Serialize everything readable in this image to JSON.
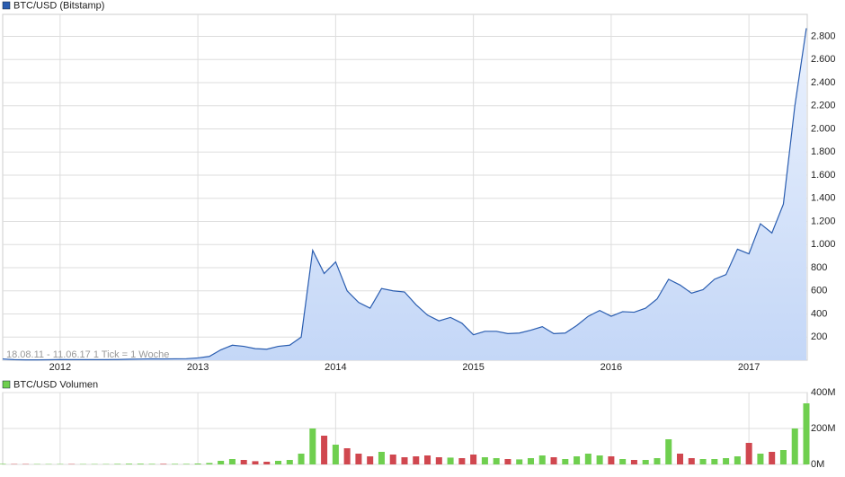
{
  "chart_data": [
    {
      "type": "area",
      "title": "BTC/USD (Bitstamp)",
      "color": "#2a5db0",
      "fill": "#c4d7f7",
      "note": "18.08.11 - 11.06.17   1 Tick = 1 Woche",
      "categories": [
        null,
        null,
        null,
        null,
        null,
        "2012",
        null,
        null,
        null,
        null,
        null,
        null,
        null,
        null,
        null,
        null,
        null,
        "2013",
        null,
        null,
        null,
        null,
        null,
        null,
        null,
        null,
        null,
        null,
        null,
        "2014",
        null,
        null,
        null,
        null,
        null,
        null,
        null,
        null,
        null,
        null,
        null,
        "2015",
        null,
        null,
        null,
        null,
        null,
        null,
        null,
        null,
        null,
        null,
        null,
        "2016",
        null,
        null,
        null,
        null,
        null,
        null,
        null,
        null,
        null,
        null,
        null,
        "2017",
        null,
        null,
        null,
        null,
        null
      ],
      "values": [
        11,
        5,
        3,
        3,
        4,
        6,
        5,
        5,
        5,
        5,
        6,
        9,
        10,
        12,
        11,
        12,
        13,
        20,
        33,
        90,
        130,
        120,
        100,
        95,
        120,
        130,
        200,
        950,
        750,
        850,
        600,
        500,
        450,
        620,
        600,
        590,
        480,
        390,
        340,
        370,
        320,
        220,
        250,
        250,
        230,
        235,
        260,
        290,
        230,
        235,
        300,
        380,
        430,
        380,
        420,
        415,
        450,
        530,
        700,
        650,
        580,
        610,
        700,
        740,
        960,
        920,
        1180,
        1100,
        1350,
        2200,
        2870
      ],
      "ylim": [
        0,
        2990
      ],
      "yticks": [
        200,
        400,
        600,
        800,
        {
          "value": 1000,
          "label": "1.000"
        },
        {
          "value": 1200,
          "label": "1.200"
        },
        {
          "value": 1400,
          "label": "1.400"
        },
        {
          "value": 1600,
          "label": "1.600"
        },
        {
          "value": 1800,
          "label": "1.800"
        },
        {
          "value": 2000,
          "label": "2.000"
        },
        {
          "value": 2200,
          "label": "2.200"
        },
        {
          "value": 2400,
          "label": "2.400"
        },
        {
          "value": 2600,
          "label": "2.600"
        },
        {
          "value": 2800,
          "label": "2.800"
        }
      ],
      "grid": true
    },
    {
      "type": "bar",
      "title": "BTC/USD Volumen",
      "up_color": "#6fcf4f",
      "down_color": "#d0474f",
      "values": [
        3,
        2,
        2,
        2,
        2,
        2,
        2,
        2,
        2,
        2,
        3,
        4,
        4,
        3,
        3,
        3,
        3,
        5,
        8,
        20,
        30,
        25,
        18,
        15,
        20,
        25,
        60,
        200,
        160,
        110,
        90,
        60,
        45,
        70,
        55,
        40,
        45,
        50,
        40,
        38,
        35,
        55,
        40,
        35,
        30,
        28,
        35,
        50,
        40,
        30,
        45,
        60,
        50,
        45,
        30,
        25,
        25,
        35,
        140,
        60,
        35,
        30,
        30,
        35,
        45,
        120,
        60,
        70,
        80,
        200,
        340
      ],
      "ylim": [
        0,
        400
      ],
      "yticks": [
        {
          "value": 0,
          "label": "0M"
        },
        {
          "value": 200,
          "label": "200M"
        },
        {
          "value": 400,
          "label": "400M"
        }
      ],
      "grid": true
    }
  ]
}
